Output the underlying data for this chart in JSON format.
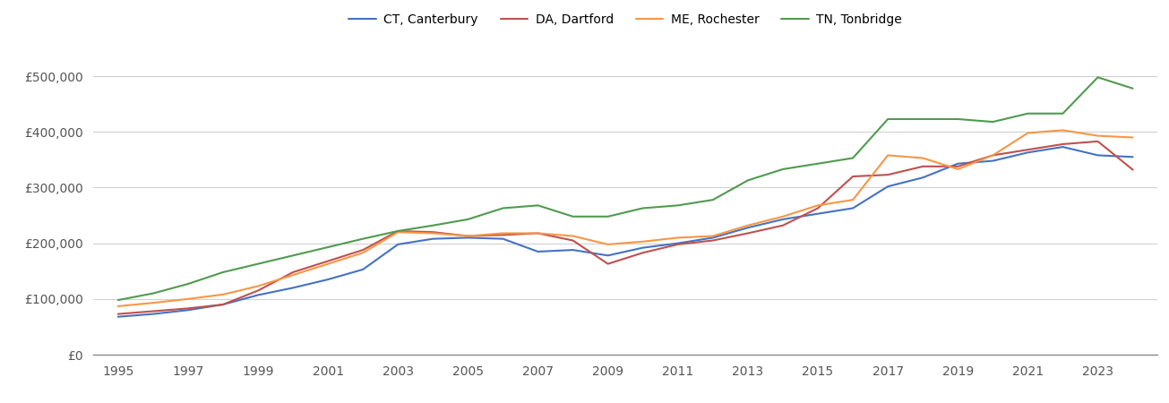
{
  "series": {
    "CT, Canterbury": {
      "color": "#4472c4",
      "years": [
        1995,
        1996,
        1997,
        1998,
        1999,
        2000,
        2001,
        2002,
        2003,
        2004,
        2005,
        2006,
        2007,
        2008,
        2009,
        2010,
        2011,
        2012,
        2013,
        2014,
        2015,
        2016,
        2017,
        2018,
        2019,
        2020,
        2021,
        2022,
        2023,
        2024
      ],
      "values": [
        68000,
        73000,
        80000,
        90000,
        107000,
        120000,
        135000,
        153000,
        198000,
        208000,
        210000,
        208000,
        185000,
        188000,
        178000,
        192000,
        200000,
        210000,
        228000,
        243000,
        253000,
        263000,
        302000,
        318000,
        343000,
        348000,
        363000,
        373000,
        358000,
        355000
      ]
    },
    "DA, Dartford": {
      "color": "#c0504d",
      "years": [
        1995,
        1996,
        1997,
        1998,
        1999,
        2000,
        2001,
        2002,
        2003,
        2004,
        2005,
        2006,
        2007,
        2008,
        2009,
        2010,
        2011,
        2012,
        2013,
        2014,
        2015,
        2016,
        2017,
        2018,
        2019,
        2020,
        2021,
        2022,
        2023,
        2024
      ],
      "values": [
        73000,
        78000,
        83000,
        90000,
        115000,
        148000,
        168000,
        188000,
        222000,
        220000,
        213000,
        215000,
        218000,
        205000,
        163000,
        183000,
        198000,
        205000,
        218000,
        232000,
        263000,
        320000,
        323000,
        338000,
        338000,
        358000,
        368000,
        378000,
        383000,
        332000
      ]
    },
    "ME, Rochester": {
      "color": "#f79646",
      "years": [
        1995,
        1996,
        1997,
        1998,
        1999,
        2000,
        2001,
        2002,
        2003,
        2004,
        2005,
        2006,
        2007,
        2008,
        2009,
        2010,
        2011,
        2012,
        2013,
        2014,
        2015,
        2016,
        2017,
        2018,
        2019,
        2020,
        2021,
        2022,
        2023,
        2024
      ],
      "values": [
        87000,
        93000,
        100000,
        108000,
        123000,
        143000,
        163000,
        183000,
        220000,
        218000,
        213000,
        218000,
        218000,
        213000,
        198000,
        203000,
        210000,
        213000,
        232000,
        248000,
        268000,
        278000,
        358000,
        353000,
        333000,
        358000,
        398000,
        403000,
        393000,
        390000
      ]
    },
    "TN, Tonbridge": {
      "color": "#4f9b4f",
      "years": [
        1995,
        1996,
        1997,
        1998,
        1999,
        2000,
        2001,
        2002,
        2003,
        2004,
        2005,
        2006,
        2007,
        2008,
        2009,
        2010,
        2011,
        2012,
        2013,
        2014,
        2015,
        2016,
        2017,
        2018,
        2019,
        2020,
        2021,
        2022,
        2023,
        2024
      ],
      "values": [
        98000,
        110000,
        127000,
        148000,
        163000,
        178000,
        193000,
        208000,
        222000,
        232000,
        243000,
        263000,
        268000,
        248000,
        248000,
        263000,
        268000,
        278000,
        313000,
        333000,
        343000,
        353000,
        423000,
        423000,
        423000,
        418000,
        433000,
        433000,
        498000,
        478000
      ]
    }
  },
  "legend_labels": [
    "CT, Canterbury",
    "DA, Dartford",
    "ME, Rochester",
    "TN, Tonbridge"
  ],
  "ylim": [
    0,
    550000
  ],
  "yticks": [
    0,
    100000,
    200000,
    300000,
    400000,
    500000
  ],
  "ytick_labels": [
    "£0",
    "£100,000",
    "£200,000",
    "£300,000",
    "£400,000",
    "£500,000"
  ],
  "xtick_years": [
    1995,
    1997,
    1999,
    2001,
    2003,
    2005,
    2007,
    2009,
    2011,
    2013,
    2015,
    2017,
    2019,
    2021,
    2023
  ],
  "xlim_left": 1994.3,
  "xlim_right": 2024.7,
  "background_color": "#ffffff",
  "grid_color": "#d0d0d0",
  "line_width": 1.5,
  "legend_ncol": 4
}
